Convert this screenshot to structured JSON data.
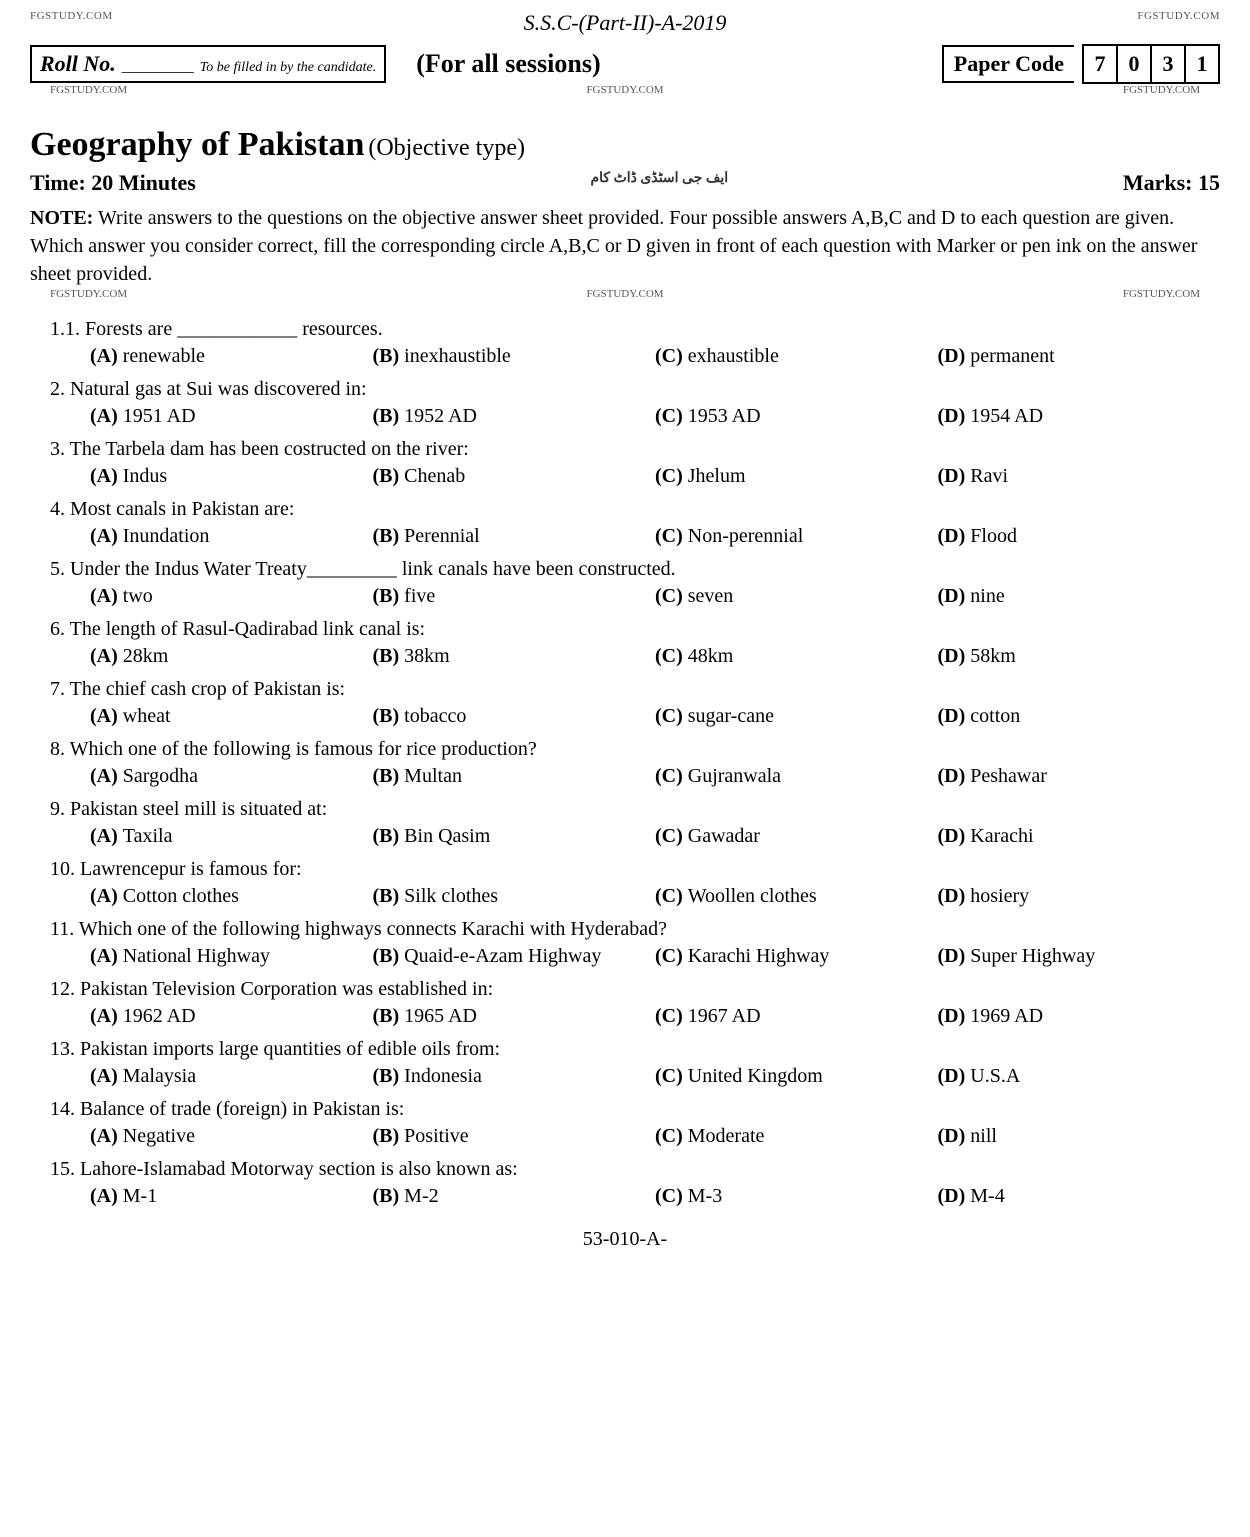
{
  "watermark": "FGSTUDY.COM",
  "exam_title": "S.S.C-(Part-II)-A-2019",
  "roll": {
    "label": "Roll No.",
    "blank": "_________",
    "instruction": "To be filled in by the candidate."
  },
  "sessions": "(For all sessions)",
  "paper_code": {
    "label": "Paper Code",
    "digits": [
      "7",
      "0",
      "3",
      "1"
    ]
  },
  "subject": {
    "title": "Geography of Pakistan",
    "type": "(Objective type)"
  },
  "time": "Time: 20 Minutes",
  "marks": "Marks: 15",
  "note": {
    "label": "NOTE:",
    "text": "Write answers to the questions on the objective answer sheet provided. Four possible answers A,B,C and D to each question are given. Which answer you consider correct, fill the corresponding circle A,B,C or D given in front of each question with Marker or pen ink on the answer sheet provided."
  },
  "questions": [
    {
      "num": "1.1.",
      "text": "Forests are ____________ resources.",
      "opts": [
        "renewable",
        "inexhaustible",
        "exhaustible",
        "permanent"
      ]
    },
    {
      "num": "2.",
      "text": "Natural gas at Sui was discovered in:",
      "opts": [
        "1951 AD",
        "1952 AD",
        "1953 AD",
        "1954 AD"
      ]
    },
    {
      "num": "3.",
      "text": "The Tarbela dam has been costructed on the river:",
      "opts": [
        "Indus",
        "Chenab",
        "Jhelum",
        "Ravi"
      ]
    },
    {
      "num": "4.",
      "text": "Most canals in Pakistan are:",
      "opts": [
        "Inundation",
        "Perennial",
        "Non-perennial",
        "Flood"
      ]
    },
    {
      "num": "5.",
      "text": "Under the Indus Water Treaty_________ link canals have been constructed.",
      "opts": [
        "two",
        "five",
        "seven",
        "nine"
      ]
    },
    {
      "num": "6.",
      "text": "The length of Rasul-Qadirabad link canal is:",
      "opts": [
        "28km",
        "38km",
        "48km",
        "58km"
      ]
    },
    {
      "num": "7.",
      "text": "The chief cash crop of Pakistan is:",
      "opts": [
        "wheat",
        "tobacco",
        "sugar-cane",
        "cotton"
      ]
    },
    {
      "num": "8.",
      "text": "Which one of the following is famous for rice production?",
      "opts": [
        "Sargodha",
        "Multan",
        "Gujranwala",
        "Peshawar"
      ]
    },
    {
      "num": "9.",
      "text": "Pakistan steel mill is situated at:",
      "opts": [
        "Taxila",
        "Bin Qasim",
        "Gawadar",
        "Karachi"
      ]
    },
    {
      "num": "10.",
      "text": "Lawrencepur is famous for:",
      "opts": [
        "Cotton clothes",
        "Silk clothes",
        "Woollen clothes",
        "hosiery"
      ]
    },
    {
      "num": "11.",
      "text": "Which one of the following highways connects Karachi with Hyderabad?",
      "opts": [
        "National Highway",
        "Quaid-e-Azam Highway",
        "Karachi Highway",
        "Super Highway"
      ]
    },
    {
      "num": "12.",
      "text": "Pakistan Television Corporation was established in:",
      "opts": [
        "1962 AD",
        "1965 AD",
        "1967 AD",
        "1969 AD"
      ]
    },
    {
      "num": "13.",
      "text": "Pakistan imports large quantities of edible oils from:",
      "opts": [
        "Malaysia",
        "Indonesia",
        "United Kingdom",
        "U.S.A"
      ]
    },
    {
      "num": "14.",
      "text": "Balance of trade (foreign) in Pakistan is:",
      "opts": [
        "Negative",
        "Positive",
        "Moderate",
        "nill"
      ]
    },
    {
      "num": "15.",
      "text": "Lahore-Islamabad Motorway section is also known as:",
      "opts": [
        "M-1",
        "M-2",
        "M-3",
        "M-4"
      ]
    }
  ],
  "opt_labels": [
    "(A)",
    "(B)",
    "(C)",
    "(D)"
  ],
  "footer_code": "53-010-A-"
}
